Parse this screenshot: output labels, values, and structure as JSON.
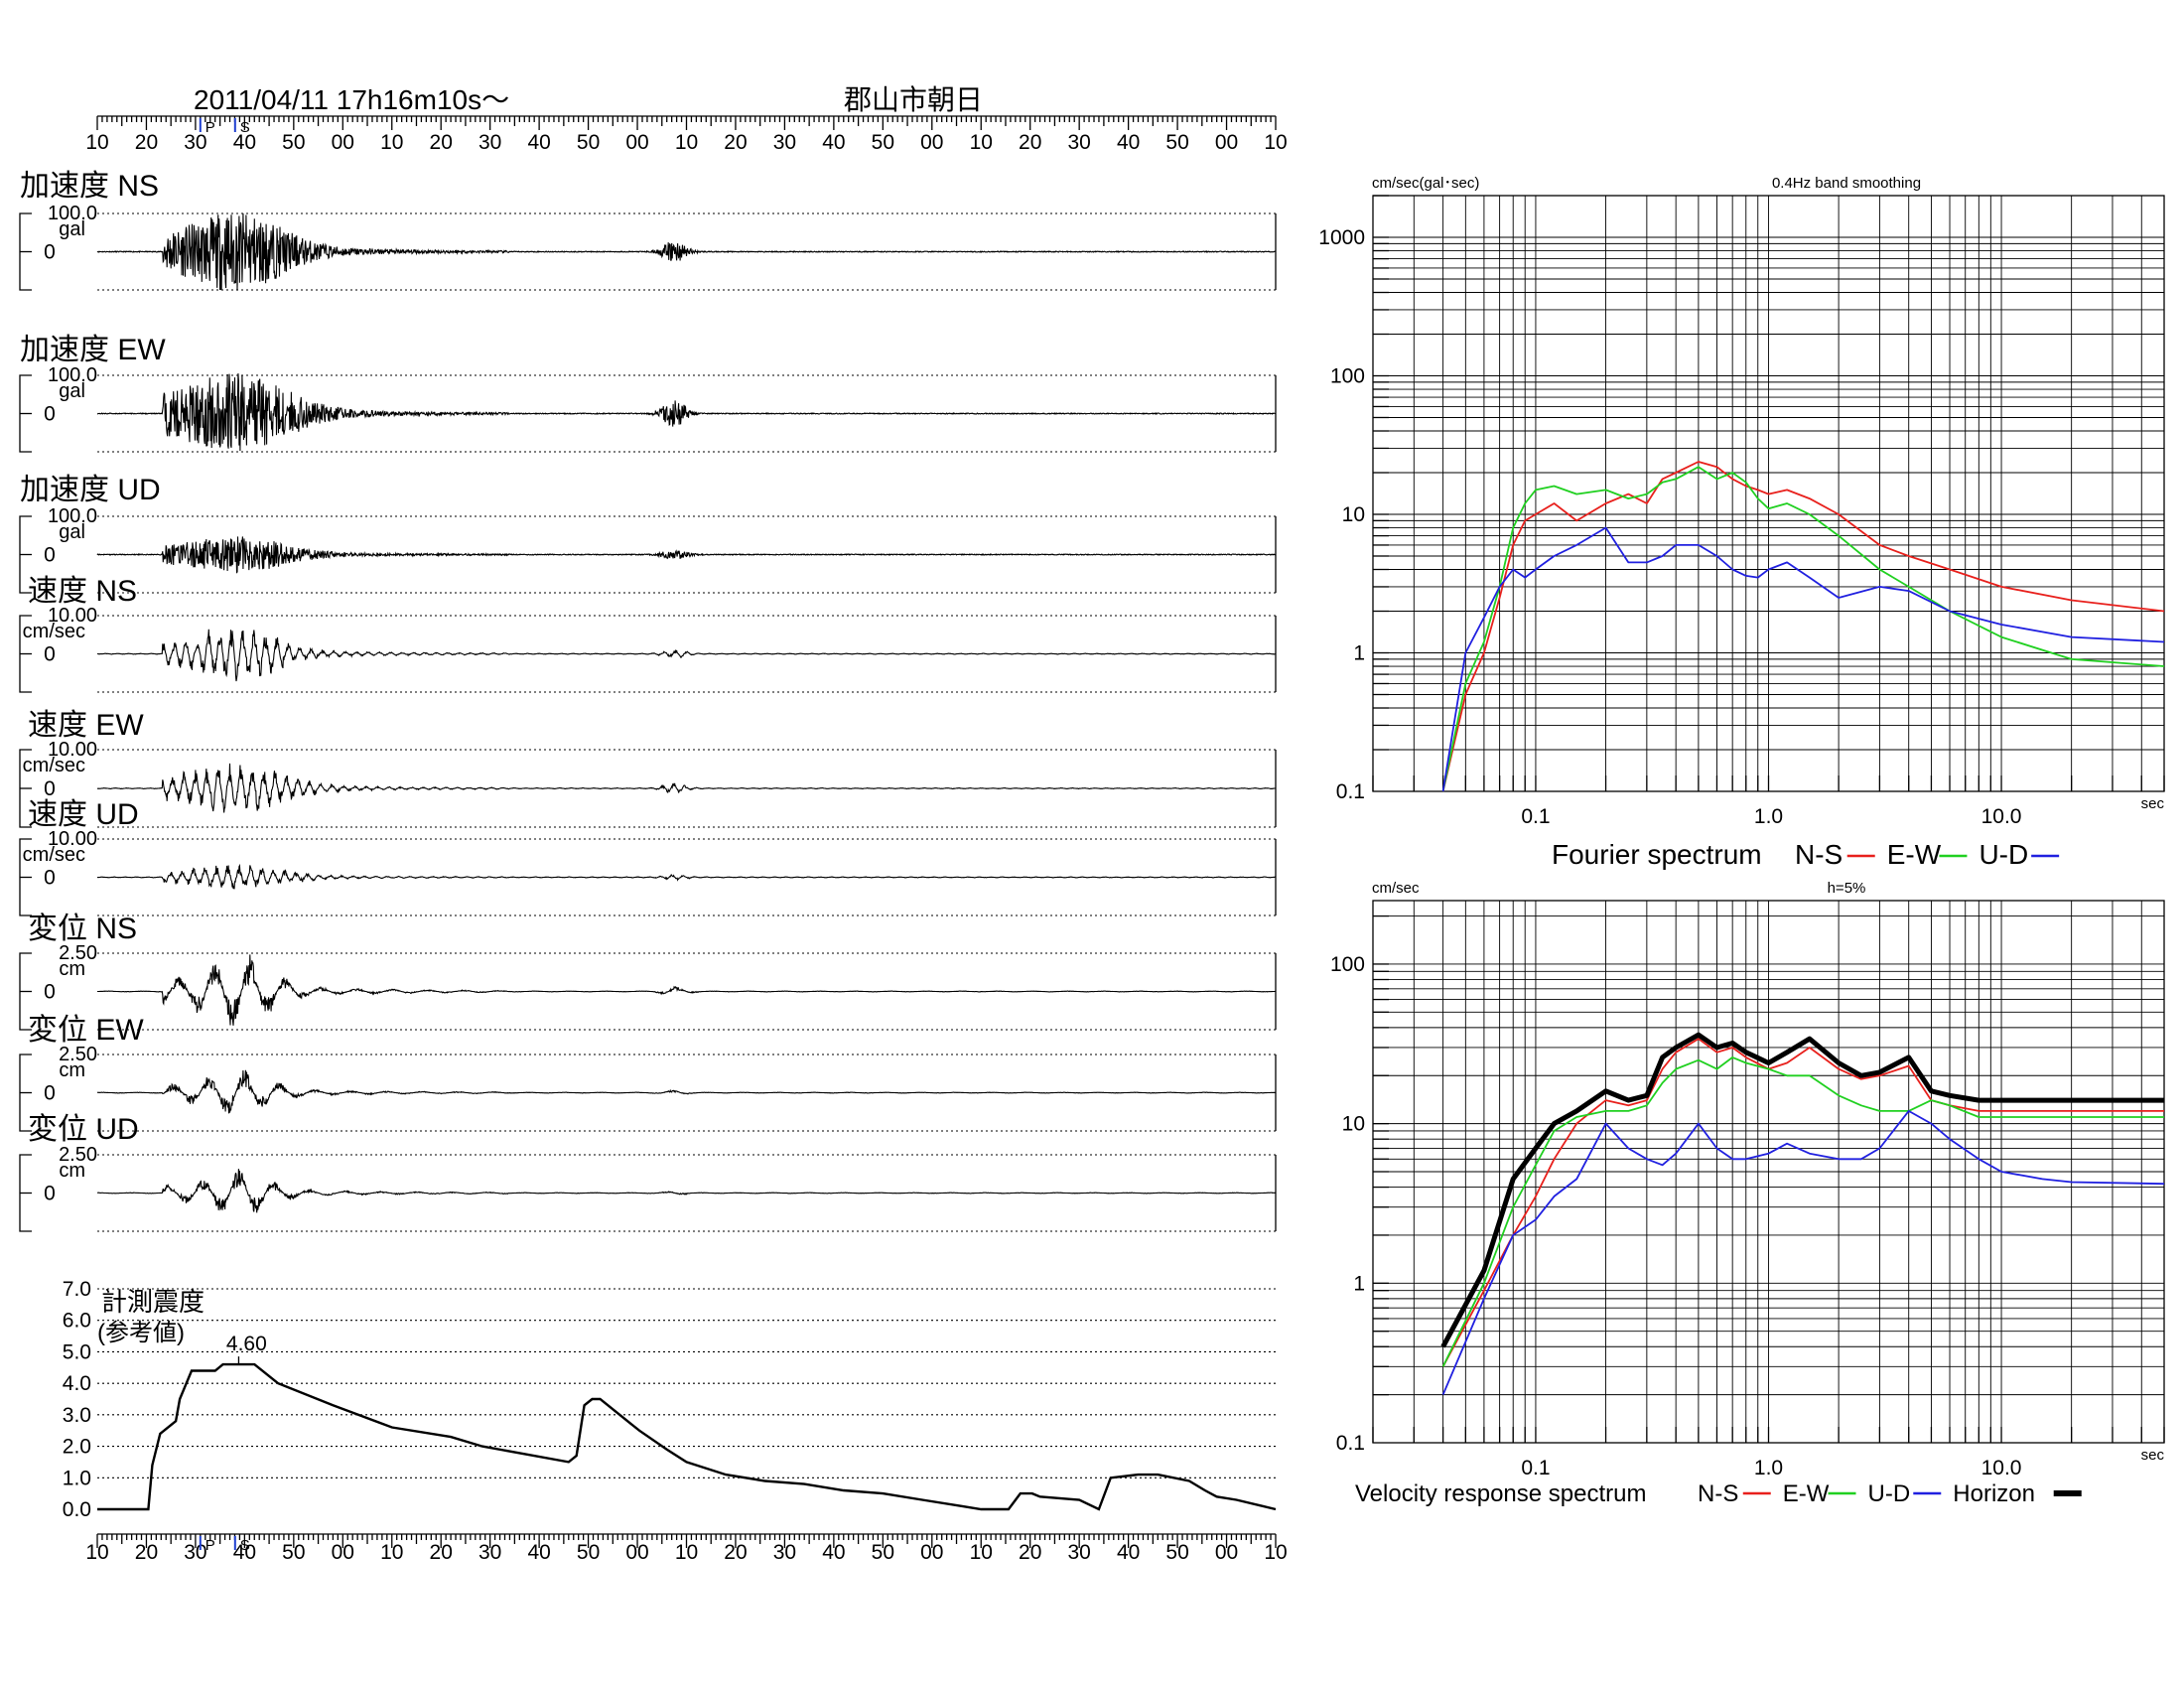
{
  "header": {
    "datetime": "2011/04/11  17h16m10s〜",
    "station": "郡山市朝日",
    "time_ticks": [
      "10",
      "20",
      "30",
      "40",
      "50",
      "00",
      "10",
      "20",
      "30",
      "40",
      "50",
      "00",
      "10",
      "20",
      "30",
      "40",
      "50",
      "00",
      "10",
      "20",
      "30",
      "40",
      "50",
      "00",
      "10"
    ],
    "p_marker": "P",
    "s_marker": "S"
  },
  "waveforms": [
    {
      "title": "加速度 NS",
      "scale": "100.0",
      "unit": "gal",
      "zero": "0"
    },
    {
      "title": "加速度 EW",
      "scale": "100.0",
      "unit": "gal",
      "zero": "0"
    },
    {
      "title": "加速度 UD",
      "scale": "100.0",
      "unit": "gal",
      "zero": "0"
    },
    {
      "title": "速度 NS",
      "scale": "10.00",
      "unit": "cm/sec",
      "zero": "0"
    },
    {
      "title": "速度 EW",
      "scale": "10.00",
      "unit": "cm/sec",
      "zero": "0"
    },
    {
      "title": "速度 UD",
      "scale": "10.00",
      "unit": "cm/sec",
      "zero": "0"
    },
    {
      "title": "変位 NS",
      "scale": "2.50",
      "unit": "cm",
      "zero": "0"
    },
    {
      "title": "変位 EW",
      "scale": "2.50",
      "unit": "cm",
      "zero": "0"
    },
    {
      "title": "変位 UD",
      "scale": "2.50",
      "unit": "cm",
      "zero": "0"
    }
  ],
  "intensity": {
    "title_line1": "計測震度",
    "title_line2": "(参考値)",
    "peak_label": "4.60",
    "yticks": [
      "7.0",
      "6.0",
      "5.0",
      "4.0",
      "3.0",
      "2.0",
      "1.0",
      "0.0"
    ]
  },
  "fourier": {
    "ylabel": "cm/sec(gal･sec)",
    "note": "0.4Hz band smoothing",
    "yticks": [
      "1000",
      "100",
      "10",
      "1",
      "0.1"
    ],
    "xticks": [
      "0.1",
      "1.0",
      "10.0"
    ],
    "xunit": "sec",
    "caption": "Fourier spectrum",
    "legend": [
      "N-S",
      "E-W",
      "U-D"
    ]
  },
  "response": {
    "ylabel": "cm/sec",
    "note": "h=5%",
    "yticks": [
      "100",
      "10",
      "1",
      "0.1"
    ],
    "xticks": [
      "0.1",
      "1.0",
      "10.0"
    ],
    "xunit": "sec",
    "caption": "Velocity response spectrum",
    "legend": [
      "N-S",
      "E-W",
      "U-D",
      "Horizon"
    ]
  },
  "colors": {
    "ns": "#e8201c",
    "ew": "#20d020",
    "ud": "#2020e0",
    "horizon": "#000000",
    "marker": "#1f3fd0"
  },
  "chart_data": [
    {
      "type": "line",
      "title": "計測震度 (参考値)",
      "xlabel": "",
      "ylabel": "",
      "ylim": [
        0,
        7
      ],
      "x_unit": "sec after 17h16m10s",
      "series": [
        {
          "x": [
            0,
            13,
            14,
            16,
            20,
            21,
            24,
            30,
            32,
            40,
            46,
            60,
            75,
            90,
            98,
            120,
            122,
            124,
            126,
            128,
            138,
            145,
            150,
            160,
            170,
            180,
            190,
            200,
            210,
            220,
            225,
            232,
            235,
            238,
            240,
            250,
            255,
            258,
            265,
            270,
            278,
            282,
            285,
            290,
            300
          ],
          "values": [
            0.0,
            0.0,
            1.4,
            2.4,
            2.8,
            3.5,
            4.4,
            4.4,
            4.6,
            4.6,
            4.0,
            3.3,
            2.6,
            2.3,
            2.0,
            1.5,
            1.7,
            3.3,
            3.5,
            3.5,
            2.5,
            1.9,
            1.5,
            1.1,
            0.9,
            0.8,
            0.6,
            0.5,
            0.3,
            0.1,
            0.0,
            0.0,
            0.5,
            0.5,
            0.4,
            0.3,
            0.0,
            1.0,
            1.1,
            1.1,
            0.9,
            0.6,
            0.4,
            0.3,
            0.0
          ]
        }
      ]
    },
    {
      "type": "line",
      "title": "Fourier spectrum",
      "xlabel": "sec",
      "ylabel": "cm/sec(gal･sec)",
      "xscale": "log",
      "yscale": "log",
      "xlim": [
        0.02,
        50
      ],
      "ylim": [
        0.1,
        2000
      ],
      "x": [
        0.04,
        0.05,
        0.06,
        0.07,
        0.08,
        0.09,
        0.1,
        0.12,
        0.15,
        0.2,
        0.25,
        0.3,
        0.35,
        0.4,
        0.5,
        0.6,
        0.7,
        0.8,
        0.9,
        1.0,
        1.2,
        1.5,
        2.0,
        3.0,
        4.0,
        6.0,
        10.0,
        20.0,
        50.0
      ],
      "series": [
        {
          "name": "N-S",
          "values": [
            0.1,
            0.5,
            1.0,
            2.5,
            6.0,
            9.0,
            10,
            12,
            9,
            12,
            14,
            12,
            18,
            20,
            24,
            22,
            18,
            16,
            15,
            14,
            15,
            13,
            10,
            6,
            5,
            4,
            3,
            2.4,
            2.0
          ]
        },
        {
          "name": "E-W",
          "values": [
            0.1,
            0.6,
            1.2,
            3.0,
            8.0,
            12,
            15,
            16,
            14,
            15,
            13,
            14,
            17,
            18,
            22,
            18,
            20,
            17,
            13,
            11,
            12,
            10,
            7,
            4,
            3,
            2,
            1.3,
            0.9,
            0.8
          ]
        },
        {
          "name": "U-D",
          "values": [
            0.1,
            1.0,
            1.8,
            3.0,
            4.0,
            3.5,
            4.0,
            5.0,
            6.0,
            8.0,
            4.5,
            4.5,
            5.0,
            6.0,
            6.0,
            5.0,
            4.0,
            3.6,
            3.5,
            4.0,
            4.5,
            3.5,
            2.5,
            3.0,
            2.8,
            2.0,
            1.6,
            1.3,
            1.2
          ]
        }
      ]
    },
    {
      "type": "line",
      "title": "Velocity response spectrum",
      "xlabel": "sec",
      "ylabel": "cm/sec",
      "xscale": "log",
      "yscale": "log",
      "xlim": [
        0.02,
        50
      ],
      "ylim": [
        0.1,
        250
      ],
      "x": [
        0.04,
        0.06,
        0.08,
        0.1,
        0.12,
        0.15,
        0.2,
        0.25,
        0.3,
        0.35,
        0.4,
        0.5,
        0.6,
        0.7,
        0.8,
        1.0,
        1.2,
        1.5,
        2.0,
        2.5,
        3.0,
        4.0,
        5.0,
        6.0,
        8.0,
        10.0,
        15.0,
        20.0,
        50.0
      ],
      "series": [
        {
          "name": "N-S",
          "values": [
            0.3,
            0.9,
            2.0,
            3.5,
            6.0,
            10,
            14,
            13,
            14,
            22,
            28,
            34,
            28,
            30,
            26,
            22,
            24,
            30,
            22,
            19,
            20,
            23,
            14,
            13,
            12,
            12,
            12,
            12,
            12
          ]
        },
        {
          "name": "E-W",
          "values": [
            0.3,
            1.0,
            3.0,
            5.5,
            9.0,
            11,
            12,
            12,
            13,
            18,
            22,
            25,
            22,
            26,
            24,
            22,
            20,
            20,
            15,
            13,
            12,
            12,
            14,
            13,
            11,
            11,
            11,
            11,
            11
          ]
        },
        {
          "name": "U-D",
          "values": [
            0.2,
            0.8,
            2.0,
            2.5,
            3.5,
            4.5,
            10,
            7,
            6,
            5.5,
            6.5,
            10,
            7,
            6,
            6,
            6.5,
            7.5,
            6.5,
            6.0,
            6.0,
            7.0,
            12,
            10,
            8,
            6,
            5,
            4.5,
            4.3,
            4.2
          ]
        },
        {
          "name": "Horizon",
          "values": [
            0.4,
            1.2,
            4.5,
            7.0,
            10,
            12,
            16,
            14,
            15,
            26,
            30,
            36,
            30,
            32,
            28,
            24,
            28,
            34,
            24,
            20,
            21,
            26,
            16,
            15,
            14,
            14,
            14,
            14,
            14
          ]
        }
      ]
    }
  ]
}
